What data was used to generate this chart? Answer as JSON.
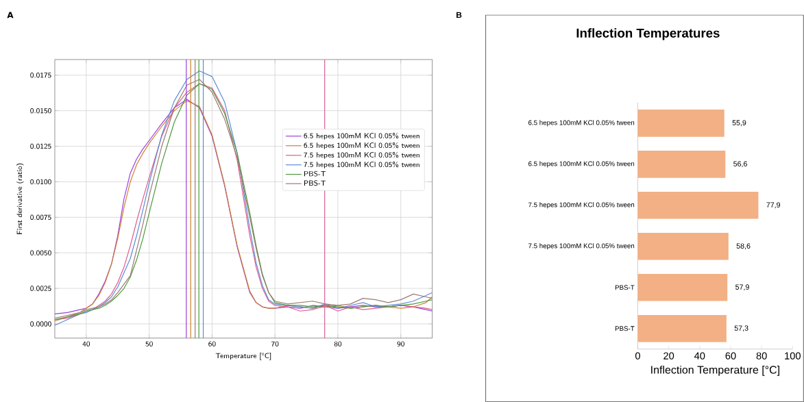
{
  "chart_data": [
    {
      "type": "line",
      "xlabel": "Temperature [°C]",
      "ylabel": "First derivative (ratio)",
      "annotations": [
        "A"
      ],
      "x": [
        35,
        37,
        39,
        40,
        41,
        42,
        43,
        44,
        45,
        46,
        47,
        48,
        49,
        50,
        52,
        54,
        56,
        58,
        60,
        62,
        64,
        66,
        67,
        68,
        69,
        70,
        72,
        74,
        76,
        78,
        80,
        82,
        84,
        86,
        88,
        90,
        92,
        94,
        95
      ],
      "series": [
        {
          "name": "6.5 hepes 100mM KCl 0.05% tween",
          "color": "#9b40e0",
          "values": [
            0.0007,
            0.0008,
            0.001,
            0.0011,
            0.0014,
            0.0021,
            0.003,
            0.0042,
            0.0062,
            0.0088,
            0.0106,
            0.0116,
            0.0123,
            0.0129,
            0.0141,
            0.0152,
            0.0158,
            0.0152,
            0.0132,
            0.0097,
            0.0054,
            0.0022,
            0.0015,
            0.0012,
            0.0011,
            0.0011,
            0.0012,
            0.0011,
            0.0013,
            0.0012,
            0.0011,
            0.0012,
            0.0013,
            0.0012,
            0.0012,
            0.0013,
            0.0012,
            0.001,
            0.0009
          ]
        },
        {
          "name": "6.5 hepes 100mM KCl 0.05% tween",
          "color": "#d08030",
          "values": [
            0.0002,
            0.0005,
            0.0008,
            0.0011,
            0.0014,
            0.002,
            0.0029,
            0.0042,
            0.006,
            0.0082,
            0.01,
            0.0112,
            0.012,
            0.0127,
            0.0139,
            0.015,
            0.0157,
            0.0153,
            0.0133,
            0.0098,
            0.0055,
            0.0023,
            0.0015,
            0.0012,
            0.0011,
            0.0011,
            0.0013,
            0.0012,
            0.0011,
            0.0012,
            0.0013,
            0.0011,
            0.0012,
            0.0013,
            0.0012,
            0.0011,
            0.0012,
            0.0015,
            0.0019
          ]
        },
        {
          "name": "7.5 hepes 100mM KCl 0.05% tween",
          "color": "#e05a8e",
          "values": [
            0.0003,
            0.0004,
            0.0007,
            0.0009,
            0.001,
            0.0013,
            0.0016,
            0.0021,
            0.0029,
            0.004,
            0.0055,
            0.0072,
            0.0088,
            0.0103,
            0.0132,
            0.0152,
            0.0163,
            0.0169,
            0.0166,
            0.015,
            0.0115,
            0.0062,
            0.004,
            0.0025,
            0.0016,
            0.0013,
            0.0012,
            0.0009,
            0.001,
            0.0013,
            0.0009,
            0.0012,
            0.001,
            0.0011,
            0.0012,
            0.0013,
            0.0012,
            0.0011,
            0.001
          ]
        },
        {
          "name": "7.5 hepes 100mM KCl 0.05% tween",
          "color": "#5b8cd8",
          "values": [
            -0.0001,
            0.0003,
            0.0007,
            0.0008,
            0.001,
            0.0012,
            0.0015,
            0.0019,
            0.0026,
            0.0036,
            0.0046,
            0.0062,
            0.008,
            0.0099,
            0.0133,
            0.0157,
            0.0172,
            0.0178,
            0.0174,
            0.0156,
            0.012,
            0.0067,
            0.0043,
            0.0027,
            0.0017,
            0.0014,
            0.0013,
            0.0012,
            0.0011,
            0.0014,
            0.0011,
            0.0013,
            0.0015,
            0.0012,
            0.0013,
            0.0014,
            0.0016,
            0.002,
            0.0022
          ]
        },
        {
          "name": "PBS-T",
          "color": "#4c9a3c",
          "values": [
            0.0003,
            0.0005,
            0.0007,
            0.0009,
            0.001,
            0.0011,
            0.0013,
            0.0016,
            0.002,
            0.0025,
            0.0033,
            0.0045,
            0.006,
            0.0078,
            0.0113,
            0.0142,
            0.0161,
            0.0169,
            0.0165,
            0.0148,
            0.012,
            0.0078,
            0.0055,
            0.0035,
            0.0022,
            0.0015,
            0.0013,
            0.0013,
            0.0012,
            0.0013,
            0.0012,
            0.0011,
            0.0012,
            0.0013,
            0.0012,
            0.0013,
            0.0014,
            0.0016,
            0.0017
          ]
        },
        {
          "name": "PBS-T",
          "color": "#9c7a72",
          "values": [
            0.0004,
            0.0006,
            0.0008,
            0.001,
            0.0011,
            0.0012,
            0.0014,
            0.0017,
            0.0022,
            0.0028,
            0.0034,
            0.0052,
            0.007,
            0.009,
            0.0125,
            0.0152,
            0.0168,
            0.0172,
            0.0163,
            0.0144,
            0.0117,
            0.0075,
            0.0053,
            0.0034,
            0.0022,
            0.0016,
            0.0014,
            0.0015,
            0.0016,
            0.0014,
            0.0013,
            0.0014,
            0.0018,
            0.0017,
            0.0015,
            0.0017,
            0.0021,
            0.0019,
            0.0018
          ]
        }
      ],
      "ref_lines": [
        {
          "axis": "x",
          "value": 55.9,
          "color": "#9b40e0"
        },
        {
          "axis": "x",
          "value": 56.6,
          "color": "#d08030"
        },
        {
          "axis": "x",
          "value": 77.9,
          "color": "#d6609a"
        },
        {
          "axis": "x",
          "value": 58.6,
          "color": "#5b8cd8"
        },
        {
          "axis": "x",
          "value": 57.9,
          "color": "#4c9a3c"
        },
        {
          "axis": "x",
          "value": 57.3,
          "color": "#9c7a72"
        }
      ],
      "xlim": [
        35,
        95
      ],
      "ylim": [
        -0.001,
        0.0186
      ],
      "xticks": [
        40,
        50,
        60,
        70,
        80,
        90
      ],
      "yticks": [
        {
          "value": 0,
          "label": "0.0000"
        },
        {
          "value": 0.0025,
          "label": "0.0025"
        },
        {
          "value": 0.005,
          "label": "0.0050"
        },
        {
          "value": 0.0075,
          "label": "0.0075"
        },
        {
          "value": 0.01,
          "label": "0.0100"
        },
        {
          "value": 0.0125,
          "label": "0.0125"
        },
        {
          "value": 0.015,
          "label": "0.0150"
        },
        {
          "value": 0.0175,
          "label": "0.0175"
        }
      ],
      "grid": true,
      "legend": "right",
      "marker": "none",
      "line_style": "solid"
    },
    {
      "type": "bar",
      "orientation": "horizontal",
      "title": "Inflection Temperatures",
      "xlabel": "Inflection Temperature [°C]",
      "annotations": [
        "B"
      ],
      "categories": [
        "6.5 hepes 100mM KCl 0.05% tween",
        "6.5 hepes 100mM KCl 0.05% tween",
        "7.5 hepes 100mM KCl 0.05% tween",
        "7.5 hepes 100mM KCl 0.05% tween",
        "PBS-T",
        "PBS-T"
      ],
      "values": [
        55.9,
        56.6,
        77.9,
        58.6,
        57.9,
        57.3
      ],
      "value_labels": [
        "55,9",
        "56,6",
        "77,9",
        "58,6",
        "57,9",
        "57,3"
      ],
      "color": "#f2b084",
      "xlim": [
        0,
        100
      ],
      "xticks": [
        0,
        20,
        40,
        60,
        80,
        100
      ]
    }
  ]
}
